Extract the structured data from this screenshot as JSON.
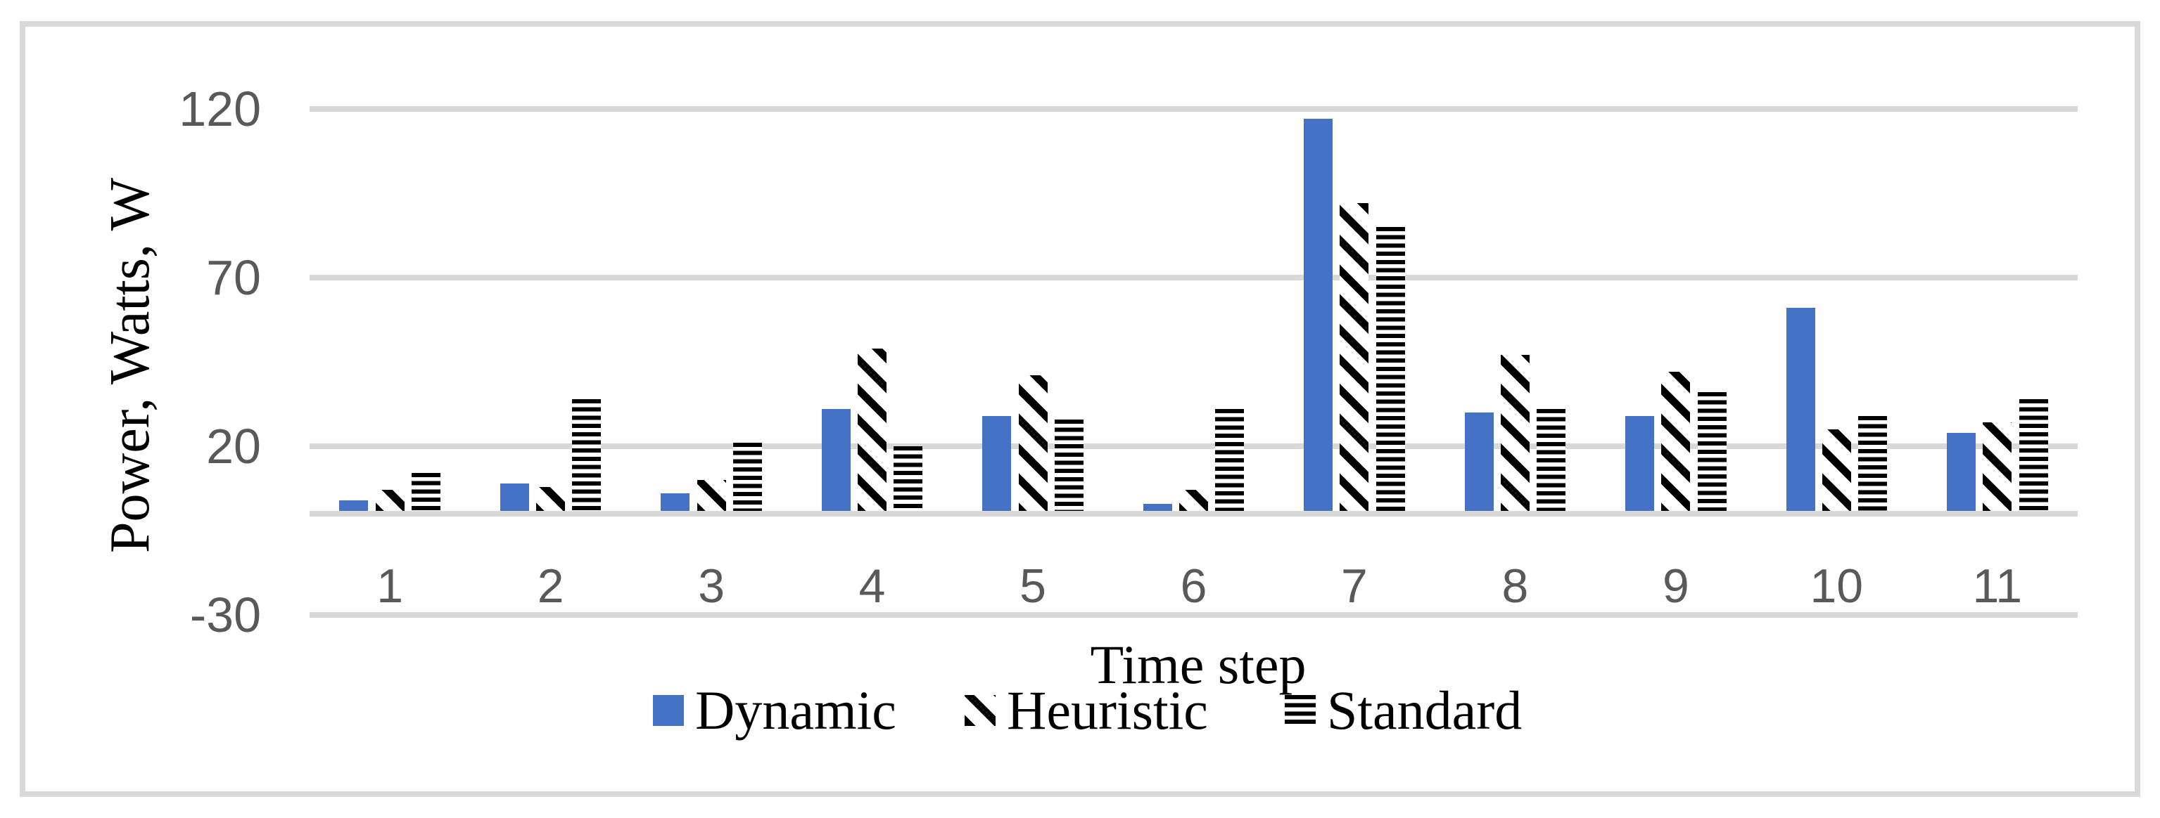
{
  "figure": {
    "background": "#ffffff",
    "border_color": "#d9d9d9",
    "accent_blue": "#4472C4",
    "gridline_color": "#d9d9d9",
    "tick_label_color": "#595959"
  },
  "chart_data": {
    "type": "bar",
    "title": "",
    "categories": [
      "1",
      "2",
      "3",
      "4",
      "5",
      "6",
      "7",
      "8",
      "9",
      "10",
      "11"
    ],
    "series": [
      {
        "name": "Dynamic",
        "pattern": "solid",
        "color": "#4472C4",
        "values": [
          4,
          9,
          6,
          31,
          29,
          3,
          117,
          30,
          29,
          61,
          24
        ]
      },
      {
        "name": "Heuristic",
        "pattern": "diagonal-stripes",
        "color": "#000000",
        "values": [
          7,
          8,
          10,
          49,
          41,
          7,
          92,
          47,
          42,
          25,
          27
        ]
      },
      {
        "name": "Standard",
        "pattern": "horizontal-stripes",
        "color": "#000000",
        "values": [
          12,
          34,
          21,
          20,
          28,
          31,
          85,
          31,
          36,
          29,
          34
        ]
      }
    ],
    "xlabel": "Time step",
    "ylabel": "Power, Watts, W",
    "y_ticks": [
      120,
      70,
      20,
      -30
    ],
    "ylim": [
      -30,
      125
    ],
    "grid": true,
    "legend_position": "bottom-center"
  }
}
